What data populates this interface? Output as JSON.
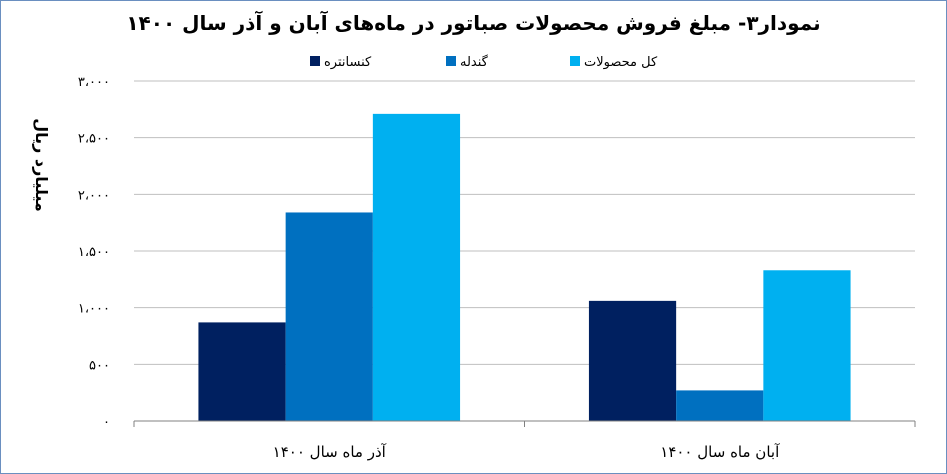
{
  "chart_data": {
    "type": "bar",
    "title": "نمودار۳- مبلغ فروش محصولات صباتور در ماه‌های آبان و آذر سال ۱۴۰۰",
    "ylabel": "میلیارد ریال",
    "xlabel": "",
    "categories": [
      "آذر ماه سال ۱۴۰۰",
      "آبان ماه سال ۱۴۰۰"
    ],
    "series": [
      {
        "name": "کنسانتره",
        "color": "#002060",
        "values": [
          870,
          1060
        ]
      },
      {
        "name": "گندله",
        "color": "#0070c0",
        "values": [
          1840,
          270
        ]
      },
      {
        "name": "کل محصولات",
        "color": "#00b0f0",
        "values": [
          2710,
          1330
        ]
      }
    ],
    "ylim": [
      0,
      3000
    ],
    "yticks": [
      0,
      500,
      1000,
      1500,
      2000,
      2500,
      3000
    ],
    "ytick_labels": [
      "۰",
      "۵۰۰",
      "۱،۰۰۰",
      "۱،۵۰۰",
      "۲،۰۰۰",
      "۲،۵۰۰",
      "۳،۰۰۰"
    ],
    "grid": true,
    "legend_position": "top"
  }
}
